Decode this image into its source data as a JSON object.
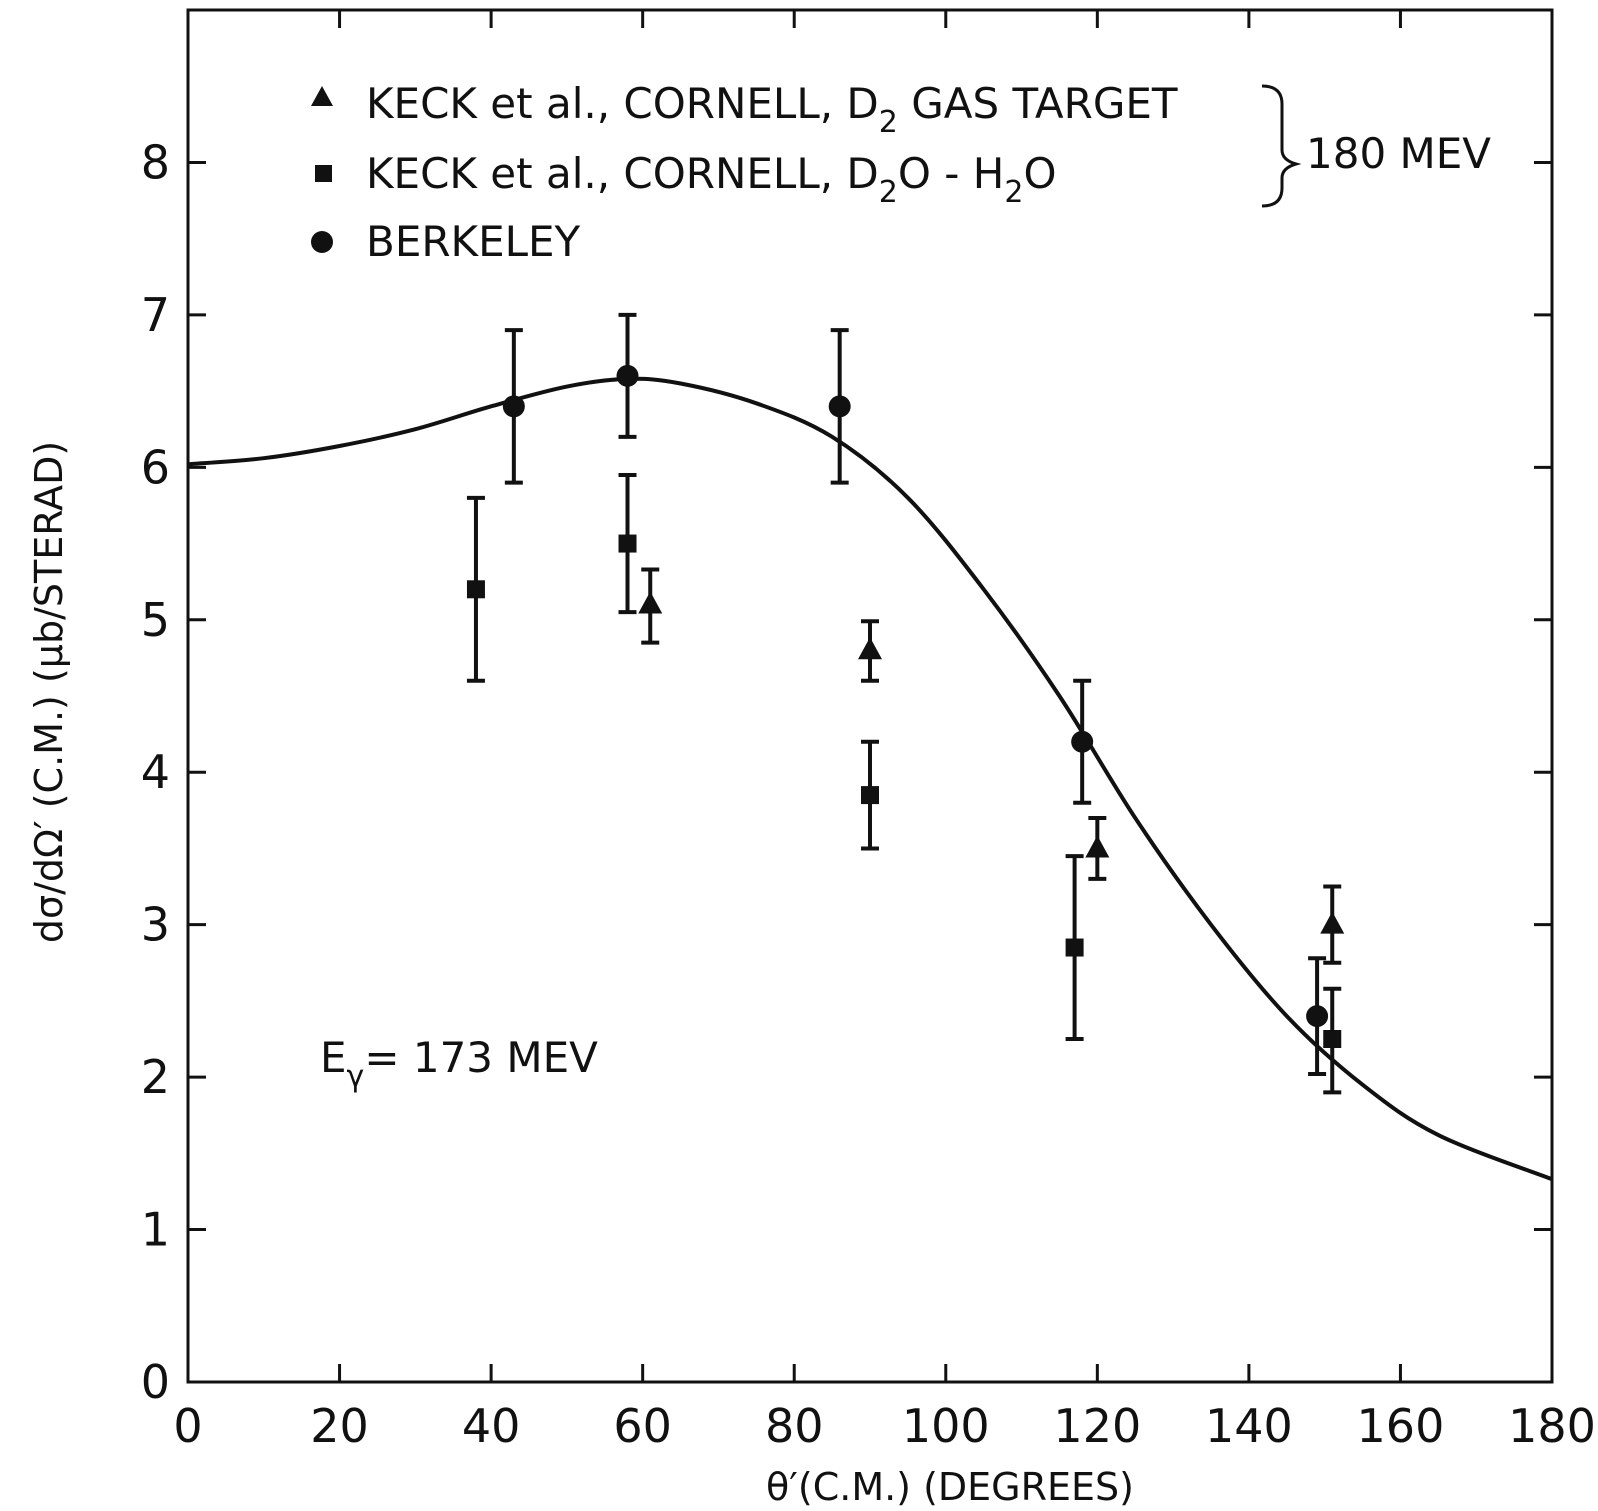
{
  "chart_data": {
    "type": "scatter",
    "xlabel": "θ′(C.M.) (DEGREES)",
    "ylabel": "dσ/dΩ′ (C.M.) (μb/STERAD)",
    "xlim": [
      0,
      180
    ],
    "ylim": [
      0,
      9
    ],
    "x_ticks": [
      0,
      20,
      40,
      60,
      80,
      100,
      120,
      140,
      160,
      180
    ],
    "y_ticks": [
      0,
      1,
      2,
      3,
      4,
      5,
      6,
      7,
      8
    ],
    "x_tick_labels": [
      "0",
      "20",
      "40",
      "60",
      "80",
      "100",
      "120",
      "140",
      "160",
      "180"
    ],
    "y_tick_labels": [
      "0",
      "1",
      "2",
      "3",
      "4",
      "5",
      "6",
      "7",
      "8"
    ],
    "legend_position": "top-left",
    "grid": false,
    "annotation": {
      "prefix": "E",
      "subscript": "γ",
      "rest": "= 173 MEV"
    },
    "legend_group_label": "180 MEV",
    "series": [
      {
        "name": "KECK et al., CORNELL, D2 GAS TARGET",
        "marker": "triangle",
        "label_parts": {
          "a": "KECK et al., CORNELL, D",
          "sub": "2",
          "b": " GAS TARGET"
        },
        "points": [
          {
            "x": 61,
            "y": 5.1,
            "yerr_low": 4.85,
            "yerr_high": 5.33
          },
          {
            "x": 90,
            "y": 4.8,
            "yerr_low": 4.6,
            "yerr_high": 4.99
          },
          {
            "x": 120,
            "y": 3.5,
            "yerr_low": 3.3,
            "yerr_high": 3.7
          },
          {
            "x": 151,
            "y": 3.0,
            "yerr_low": 2.75,
            "yerr_high": 3.25
          }
        ]
      },
      {
        "name": "KECK et al., CORNELL, D2O - H2O",
        "marker": "square",
        "label_parts": {
          "a": "KECK et al., CORNELL, D",
          "sub": "2",
          "b": "O - H",
          "sub2": "2",
          "c": "O"
        },
        "points": [
          {
            "x": 38,
            "y": 5.2,
            "yerr_low": 4.6,
            "yerr_high": 5.8
          },
          {
            "x": 58,
            "y": 5.5,
            "yerr_low": 5.05,
            "yerr_high": 5.95
          },
          {
            "x": 90,
            "y": 3.85,
            "yerr_low": 3.5,
            "yerr_high": 4.2
          },
          {
            "x": 117,
            "y": 2.85,
            "yerr_low": 2.25,
            "yerr_high": 3.45
          },
          {
            "x": 151,
            "y": 2.25,
            "yerr_low": 1.9,
            "yerr_high": 2.58
          }
        ]
      },
      {
        "name": "BERKELEY",
        "marker": "circle",
        "label_parts": {
          "a": "BERKELEY"
        },
        "points": [
          {
            "x": 43,
            "y": 6.4,
            "yerr_low": 5.9,
            "yerr_high": 6.9
          },
          {
            "x": 58,
            "y": 6.6,
            "yerr_low": 6.2,
            "yerr_high": 7.0
          },
          {
            "x": 86,
            "y": 6.4,
            "yerr_low": 5.9,
            "yerr_high": 6.9
          },
          {
            "x": 118,
            "y": 4.2,
            "yerr_low": 3.8,
            "yerr_high": 4.6
          },
          {
            "x": 149,
            "y": 2.4,
            "yerr_low": 2.02,
            "yerr_high": 2.78
          }
        ]
      }
    ],
    "curve": {
      "x": [
        0,
        10,
        20,
        30,
        40,
        50,
        58,
        65,
        75,
        85,
        95,
        105,
        115,
        125,
        135,
        145,
        155,
        165,
        180
      ],
      "y": [
        6.02,
        6.06,
        6.14,
        6.25,
        6.4,
        6.53,
        6.58,
        6.55,
        6.42,
        6.2,
        5.8,
        5.2,
        4.5,
        3.7,
        3.0,
        2.4,
        1.95,
        1.62,
        1.33
      ]
    }
  }
}
